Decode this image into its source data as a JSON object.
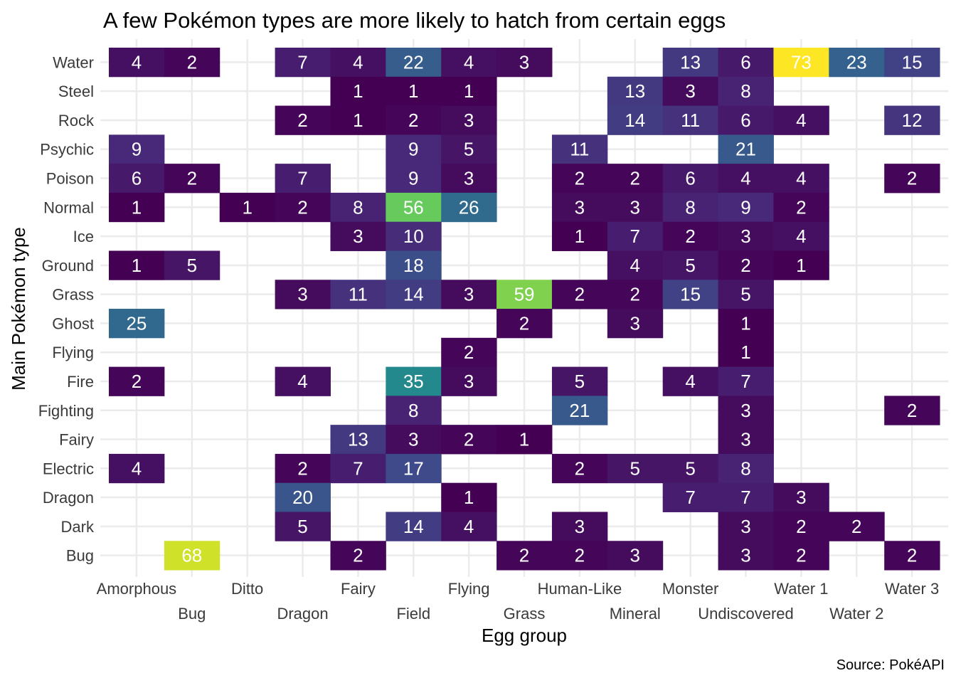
{
  "chart_data": {
    "type": "heatmap",
    "title": "A few Pokémon types are more likely to hatch from certain eggs",
    "xlabel": "Egg group",
    "ylabel": "Main Pokémon type",
    "caption": "Source: PokéAPI",
    "colormap": "viridis",
    "color_range": [
      1,
      73
    ],
    "grid": true,
    "x_categories": [
      "Amorphous",
      "Bug",
      "Ditto",
      "Dragon",
      "Fairy",
      "Field",
      "Flying",
      "Grass",
      "Human-Like",
      "Mineral",
      "Monster",
      "Undiscovered",
      "Water 1",
      "Water 2",
      "Water 3"
    ],
    "y_categories": [
      "Water",
      "Steel",
      "Rock",
      "Psychic",
      "Poison",
      "Normal",
      "Ice",
      "Ground",
      "Grass",
      "Ghost",
      "Flying",
      "Fire",
      "Fighting",
      "Fairy",
      "Electric",
      "Dragon",
      "Dark",
      "Bug"
    ],
    "cells": [
      [
        "Water",
        "Amorphous",
        4
      ],
      [
        "Water",
        "Bug",
        2
      ],
      [
        "Water",
        "Dragon",
        7
      ],
      [
        "Water",
        "Fairy",
        4
      ],
      [
        "Water",
        "Field",
        22
      ],
      [
        "Water",
        "Flying",
        4
      ],
      [
        "Water",
        "Grass",
        3
      ],
      [
        "Water",
        "Monster",
        13
      ],
      [
        "Water",
        "Undiscovered",
        6
      ],
      [
        "Water",
        "Water 1",
        73
      ],
      [
        "Water",
        "Water 2",
        23
      ],
      [
        "Water",
        "Water 3",
        15
      ],
      [
        "Steel",
        "Fairy",
        1
      ],
      [
        "Steel",
        "Field",
        1
      ],
      [
        "Steel",
        "Flying",
        1
      ],
      [
        "Steel",
        "Mineral",
        13
      ],
      [
        "Steel",
        "Monster",
        3
      ],
      [
        "Steel",
        "Undiscovered",
        8
      ],
      [
        "Rock",
        "Dragon",
        2
      ],
      [
        "Rock",
        "Fairy",
        1
      ],
      [
        "Rock",
        "Field",
        2
      ],
      [
        "Rock",
        "Flying",
        3
      ],
      [
        "Rock",
        "Mineral",
        14
      ],
      [
        "Rock",
        "Monster",
        11
      ],
      [
        "Rock",
        "Undiscovered",
        6
      ],
      [
        "Rock",
        "Water 1",
        4
      ],
      [
        "Rock",
        "Water 3",
        12
      ],
      [
        "Psychic",
        "Amorphous",
        9
      ],
      [
        "Psychic",
        "Field",
        9
      ],
      [
        "Psychic",
        "Flying",
        5
      ],
      [
        "Psychic",
        "Human-Like",
        11
      ],
      [
        "Psychic",
        "Undiscovered",
        21
      ],
      [
        "Poison",
        "Amorphous",
        6
      ],
      [
        "Poison",
        "Bug",
        2
      ],
      [
        "Poison",
        "Dragon",
        7
      ],
      [
        "Poison",
        "Field",
        9
      ],
      [
        "Poison",
        "Flying",
        3
      ],
      [
        "Poison",
        "Human-Like",
        2
      ],
      [
        "Poison",
        "Mineral",
        2
      ],
      [
        "Poison",
        "Monster",
        6
      ],
      [
        "Poison",
        "Undiscovered",
        4
      ],
      [
        "Poison",
        "Water 1",
        4
      ],
      [
        "Poison",
        "Water 3",
        2
      ],
      [
        "Normal",
        "Amorphous",
        1
      ],
      [
        "Normal",
        "Ditto",
        1
      ],
      [
        "Normal",
        "Dragon",
        2
      ],
      [
        "Normal",
        "Fairy",
        8
      ],
      [
        "Normal",
        "Field",
        56
      ],
      [
        "Normal",
        "Flying",
        26
      ],
      [
        "Normal",
        "Human-Like",
        3
      ],
      [
        "Normal",
        "Mineral",
        3
      ],
      [
        "Normal",
        "Monster",
        8
      ],
      [
        "Normal",
        "Undiscovered",
        9
      ],
      [
        "Normal",
        "Water 1",
        2
      ],
      [
        "Ice",
        "Fairy",
        3
      ],
      [
        "Ice",
        "Field",
        10
      ],
      [
        "Ice",
        "Human-Like",
        1
      ],
      [
        "Ice",
        "Mineral",
        7
      ],
      [
        "Ice",
        "Monster",
        2
      ],
      [
        "Ice",
        "Undiscovered",
        3
      ],
      [
        "Ice",
        "Water 1",
        4
      ],
      [
        "Ground",
        "Amorphous",
        1
      ],
      [
        "Ground",
        "Bug",
        5
      ],
      [
        "Ground",
        "Field",
        18
      ],
      [
        "Ground",
        "Mineral",
        4
      ],
      [
        "Ground",
        "Monster",
        5
      ],
      [
        "Ground",
        "Undiscovered",
        2
      ],
      [
        "Ground",
        "Water 1",
        1
      ],
      [
        "Grass",
        "Dragon",
        3
      ],
      [
        "Grass",
        "Fairy",
        11
      ],
      [
        "Grass",
        "Field",
        14
      ],
      [
        "Grass",
        "Flying",
        3
      ],
      [
        "Grass",
        "Grass",
        59
      ],
      [
        "Grass",
        "Human-Like",
        2
      ],
      [
        "Grass",
        "Mineral",
        2
      ],
      [
        "Grass",
        "Monster",
        15
      ],
      [
        "Grass",
        "Undiscovered",
        5
      ],
      [
        "Ghost",
        "Amorphous",
        25
      ],
      [
        "Ghost",
        "Grass",
        2
      ],
      [
        "Ghost",
        "Mineral",
        3
      ],
      [
        "Ghost",
        "Undiscovered",
        1
      ],
      [
        "Flying",
        "Flying",
        2
      ],
      [
        "Flying",
        "Undiscovered",
        1
      ],
      [
        "Fire",
        "Amorphous",
        2
      ],
      [
        "Fire",
        "Dragon",
        4
      ],
      [
        "Fire",
        "Field",
        35
      ],
      [
        "Fire",
        "Flying",
        3
      ],
      [
        "Fire",
        "Human-Like",
        5
      ],
      [
        "Fire",
        "Monster",
        4
      ],
      [
        "Fire",
        "Undiscovered",
        7
      ],
      [
        "Fighting",
        "Field",
        8
      ],
      [
        "Fighting",
        "Human-Like",
        21
      ],
      [
        "Fighting",
        "Undiscovered",
        3
      ],
      [
        "Fighting",
        "Water 3",
        2
      ],
      [
        "Fairy",
        "Fairy",
        13
      ],
      [
        "Fairy",
        "Field",
        3
      ],
      [
        "Fairy",
        "Flying",
        2
      ],
      [
        "Fairy",
        "Grass",
        1
      ],
      [
        "Fairy",
        "Undiscovered",
        3
      ],
      [
        "Electric",
        "Amorphous",
        4
      ],
      [
        "Electric",
        "Dragon",
        2
      ],
      [
        "Electric",
        "Fairy",
        7
      ],
      [
        "Electric",
        "Field",
        17
      ],
      [
        "Electric",
        "Human-Like",
        2
      ],
      [
        "Electric",
        "Mineral",
        5
      ],
      [
        "Electric",
        "Monster",
        5
      ],
      [
        "Electric",
        "Undiscovered",
        8
      ],
      [
        "Dragon",
        "Dragon",
        20
      ],
      [
        "Dragon",
        "Flying",
        1
      ],
      [
        "Dragon",
        "Monster",
        7
      ],
      [
        "Dragon",
        "Undiscovered",
        7
      ],
      [
        "Dragon",
        "Water 1",
        3
      ],
      [
        "Dark",
        "Dragon",
        5
      ],
      [
        "Dark",
        "Field",
        14
      ],
      [
        "Dark",
        "Flying",
        4
      ],
      [
        "Dark",
        "Human-Like",
        3
      ],
      [
        "Dark",
        "Undiscovered",
        3
      ],
      [
        "Dark",
        "Water 1",
        2
      ],
      [
        "Dark",
        "Water 2",
        2
      ],
      [
        "Bug",
        "Bug",
        68
      ],
      [
        "Bug",
        "Fairy",
        2
      ],
      [
        "Bug",
        "Grass",
        2
      ],
      [
        "Bug",
        "Human-Like",
        2
      ],
      [
        "Bug",
        "Mineral",
        3
      ],
      [
        "Bug",
        "Undiscovered",
        3
      ],
      [
        "Bug",
        "Water 1",
        2
      ],
      [
        "Bug",
        "Water 3",
        2
      ]
    ]
  }
}
